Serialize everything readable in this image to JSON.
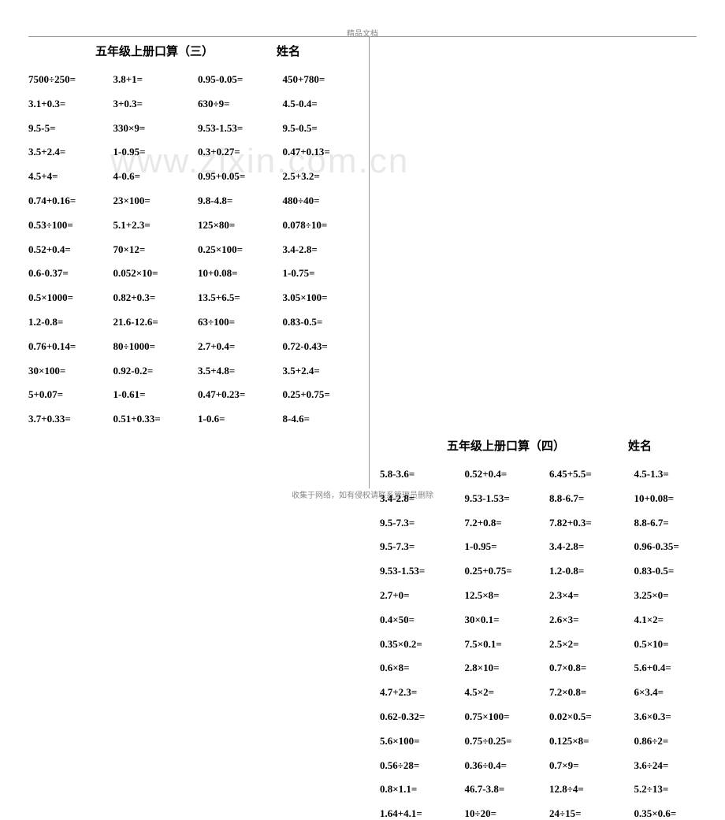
{
  "header": "精品文档",
  "footer": "收集于网络，如有侵权请联系管理员删除",
  "watermark": "www.zixin.com.cn",
  "left": {
    "title": "五年级上册口算（三）",
    "name_label": "姓名",
    "rows": [
      [
        "7500÷250=",
        "3.8+1=",
        "0.95-0.05=",
        "450+780="
      ],
      [
        "3.1+0.3=",
        "3+0.3=",
        "630÷9=",
        "4.5-0.4="
      ],
      [
        "9.5-5=",
        "330×9=",
        "9.53-1.53=",
        "9.5-0.5="
      ],
      [
        "3.5+2.4=",
        "1-0.95=",
        "0.3+0.27=",
        "0.47+0.13="
      ],
      [
        "4.5+4=",
        "4-0.6=",
        "0.95+0.05=",
        "2.5+3.2="
      ],
      [
        "0.74+0.16=",
        "23×100=",
        "9.8-4.8=",
        "480÷40="
      ],
      [
        "0.53÷100=",
        "5.1+2.3=",
        "125×80=",
        "0.078÷10="
      ],
      [
        "0.52+0.4=",
        "70×12=",
        "0.25×100=",
        "3.4-2.8="
      ],
      [
        "0.6-0.37=",
        "0.052×10=",
        "10+0.08=",
        "1-0.75="
      ],
      [
        "0.5×1000=",
        "0.82+0.3=",
        "13.5+6.5=",
        "3.05×100="
      ],
      [
        "1.2-0.8=",
        "21.6-12.6=",
        "63÷100=",
        "0.83-0.5="
      ],
      [
        "0.76+0.14=",
        "80÷1000=",
        "2.7+0.4=",
        "0.72-0.43="
      ],
      [
        "30×100=",
        "0.92-0.2=",
        "3.5+4.8=",
        "3.5+2.4="
      ],
      [
        "5+0.07=",
        "1-0.61=",
        "0.47+0.23=",
        "0.25+0.75="
      ],
      [
        "3.7+0.33=",
        "0.51+0.33=",
        "1-0.6=",
        "8-4.6="
      ]
    ]
  },
  "right": {
    "title": "五年级上册口算（四）",
    "name_label": "姓名",
    "rows": [
      [
        "5.8-3.6=",
        "0.52+0.4=",
        "6.45+5.5=",
        "4.5-1.3="
      ],
      [
        "3.4-2.8=",
        "9.53-1.53=",
        "8.8-6.7=",
        "10+0.08="
      ],
      [
        "9.5-7.3=",
        "7.2+0.8=",
        "7.82+0.3=",
        "8.8-6.7="
      ],
      [
        "9.5-7.3=",
        "1-0.95=",
        "3.4-2.8=",
        "0.96-0.35="
      ],
      [
        "9.53-1.53=",
        "0.25+0.75=",
        "1.2-0.8=",
        "0.83-0.5="
      ],
      [
        "2.7+0=",
        "12.5×8=",
        "2.3×4=",
        "3.25×0="
      ],
      [
        "0.4×50=",
        "30×0.1=",
        "2.6×3=",
        "4.1×2="
      ],
      [
        "0.35×0.2=",
        "7.5×0.1=",
        "2.5×2=",
        "0.5×10="
      ],
      [
        "0.6×8=",
        "2.8×10=",
        "0.7×0.8=",
        "5.6+0.4="
      ],
      [
        "4.7+2.3=",
        "4.5×2=",
        "7.2×0.8=",
        "6×3.4="
      ],
      [
        "0.62-0.32=",
        "0.75×100=",
        "0.02×0.5=",
        "3.6×0.3="
      ],
      [
        "5.6×100=",
        "0.75÷0.25=",
        "0.125×8=",
        "0.86÷2="
      ],
      [
        "0.56÷28=",
        "0.36÷0.4=",
        "0.7×9=",
        "3.6÷24="
      ],
      [
        "0.8×1.1=",
        "46.7-3.8=",
        "12.8÷4=",
        "5.2÷13="
      ],
      [
        "1.64+4.1=",
        "10÷20=",
        "24÷15=",
        "0.35×0.6="
      ]
    ]
  }
}
